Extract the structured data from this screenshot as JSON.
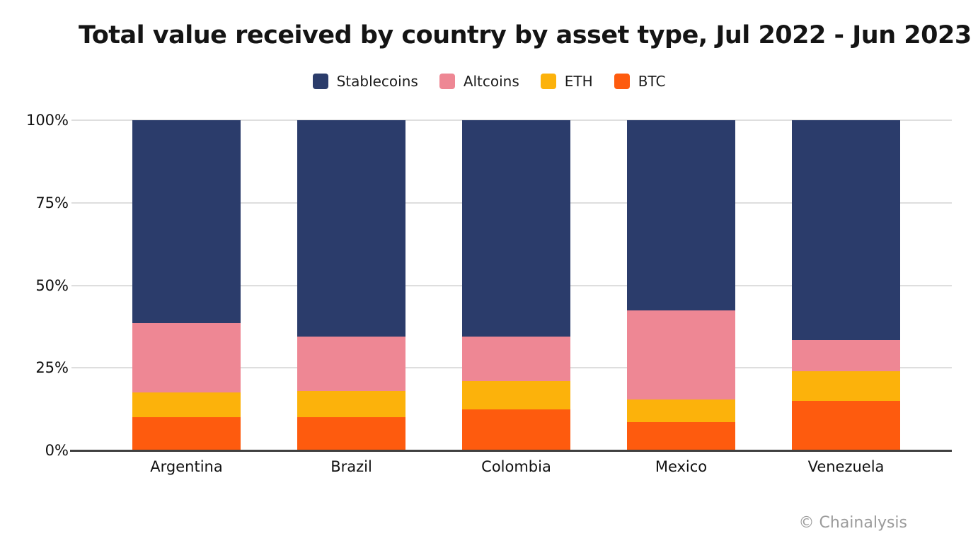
{
  "title": "Total value received by country by asset type, Jul 2022 - Jun 2023",
  "watermark": "© Chainalysis",
  "colors": {
    "stablecoins": "#2B3C6B",
    "altcoins": "#EE8794",
    "eth": "#FCB20B",
    "btc": "#FE5B0E",
    "gridline": "#DEDEDE",
    "axis": "#404040",
    "watermark_text": "#9B9B9B"
  },
  "chart_data": {
    "type": "bar",
    "stacked": true,
    "percent": true,
    "title": "Total value received by country by asset type, Jul 2022 - Jun 2023",
    "xlabel": "",
    "ylabel": "",
    "ylim": [
      0,
      100
    ],
    "y_ticks": [
      "100%",
      "75%",
      "50%",
      "25%",
      "0%"
    ],
    "grid": true,
    "legend_position": "top",
    "categories": [
      "Argentina",
      "Brazil",
      "Colombia",
      "Mexico",
      "Venezuela"
    ],
    "series": [
      {
        "name": "Stablecoins",
        "color": "#2B3C6B",
        "values": [
          61.5,
          65.5,
          65.5,
          57.5,
          66.5
        ]
      },
      {
        "name": "Altcoins",
        "color": "#EE8794",
        "values": [
          21.0,
          16.5,
          13.5,
          27.0,
          9.5
        ]
      },
      {
        "name": "ETH",
        "color": "#FCB20B",
        "values": [
          7.5,
          8.0,
          8.5,
          7.0,
          9.0
        ]
      },
      {
        "name": "BTC",
        "color": "#FE5B0E",
        "values": [
          10.0,
          10.0,
          12.5,
          8.5,
          15.0
        ]
      }
    ]
  }
}
